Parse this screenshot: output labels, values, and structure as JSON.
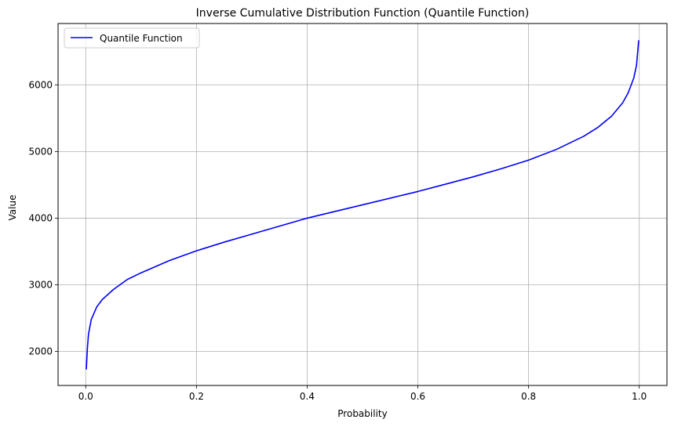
{
  "chart_data": {
    "type": "line",
    "title": "Inverse Cumulative Distribution Function (Quantile Function)",
    "xlabel": "Probability",
    "ylabel": "Value",
    "xlim": [
      -0.05,
      1.05
    ],
    "ylim": [
      1490,
      6920
    ],
    "xticks": [
      0.0,
      0.2,
      0.4,
      0.6,
      0.8,
      1.0
    ],
    "xtick_labels": [
      "0.0",
      "0.2",
      "0.4",
      "0.6",
      "0.8",
      "1.0"
    ],
    "yticks": [
      2000,
      3000,
      4000,
      5000,
      6000
    ],
    "ytick_labels": [
      "2000",
      "3000",
      "4000",
      "5000",
      "6000"
    ],
    "grid": true,
    "legend_position": "top-left",
    "series": [
      {
        "name": "Quantile Function",
        "color": "#0000ff",
        "x": [
          0.001,
          0.003,
          0.005,
          0.01,
          0.02,
          0.03,
          0.05,
          0.075,
          0.1,
          0.15,
          0.2,
          0.25,
          0.3,
          0.35,
          0.4,
          0.45,
          0.5,
          0.55,
          0.6,
          0.65,
          0.7,
          0.75,
          0.8,
          0.85,
          0.9,
          0.925,
          0.95,
          0.97,
          0.98,
          0.99,
          0.995,
          0.999
        ],
        "y": [
          1730,
          2050,
          2260,
          2480,
          2670,
          2780,
          2930,
          3080,
          3180,
          3360,
          3510,
          3640,
          3760,
          3880,
          4000,
          4100,
          4200,
          4300,
          4400,
          4510,
          4620,
          4740,
          4870,
          5030,
          5230,
          5360,
          5530,
          5730,
          5880,
          6100,
          6290,
          6670
        ]
      }
    ]
  }
}
